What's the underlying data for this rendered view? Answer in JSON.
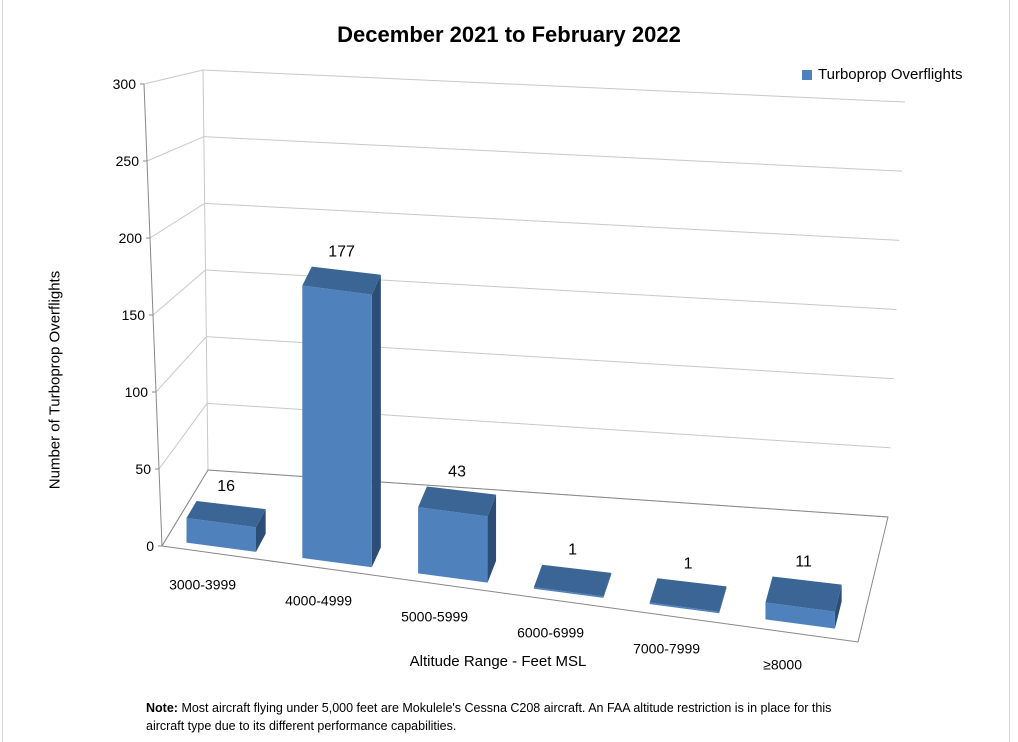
{
  "chart_data": {
    "type": "bar",
    "title": "December 2021 to February 2022",
    "xlabel": "Altitude Range - Feet MSL",
    "ylabel": "Number of Turboprop Overflights",
    "categories": [
      "3000-3999",
      "4000-4999",
      "5000-5999",
      "6000-6999",
      "7000-7999",
      "≥8000"
    ],
    "series": [
      {
        "name": "Turboprop Overflights",
        "values": [
          16,
          177,
          43,
          1,
          1,
          11
        ]
      }
    ],
    "ylim": [
      0,
      300
    ],
    "yticks": [
      "0",
      "50",
      "100",
      "150",
      "200",
      "250",
      "300"
    ],
    "grid": true,
    "legend": "top-right",
    "three_d": true,
    "colors": {
      "bar_front": "#4f81bd",
      "bar_top": "#3a6595",
      "bar_side": "#2c4d75"
    }
  },
  "note": {
    "label": "Note:",
    "text": "Most aircraft flying under 5,000 feet are Mokulele's Cessna C208 aircraft. An FAA altitude restriction is in place for this aircraft type due to its different performance capabilities."
  }
}
